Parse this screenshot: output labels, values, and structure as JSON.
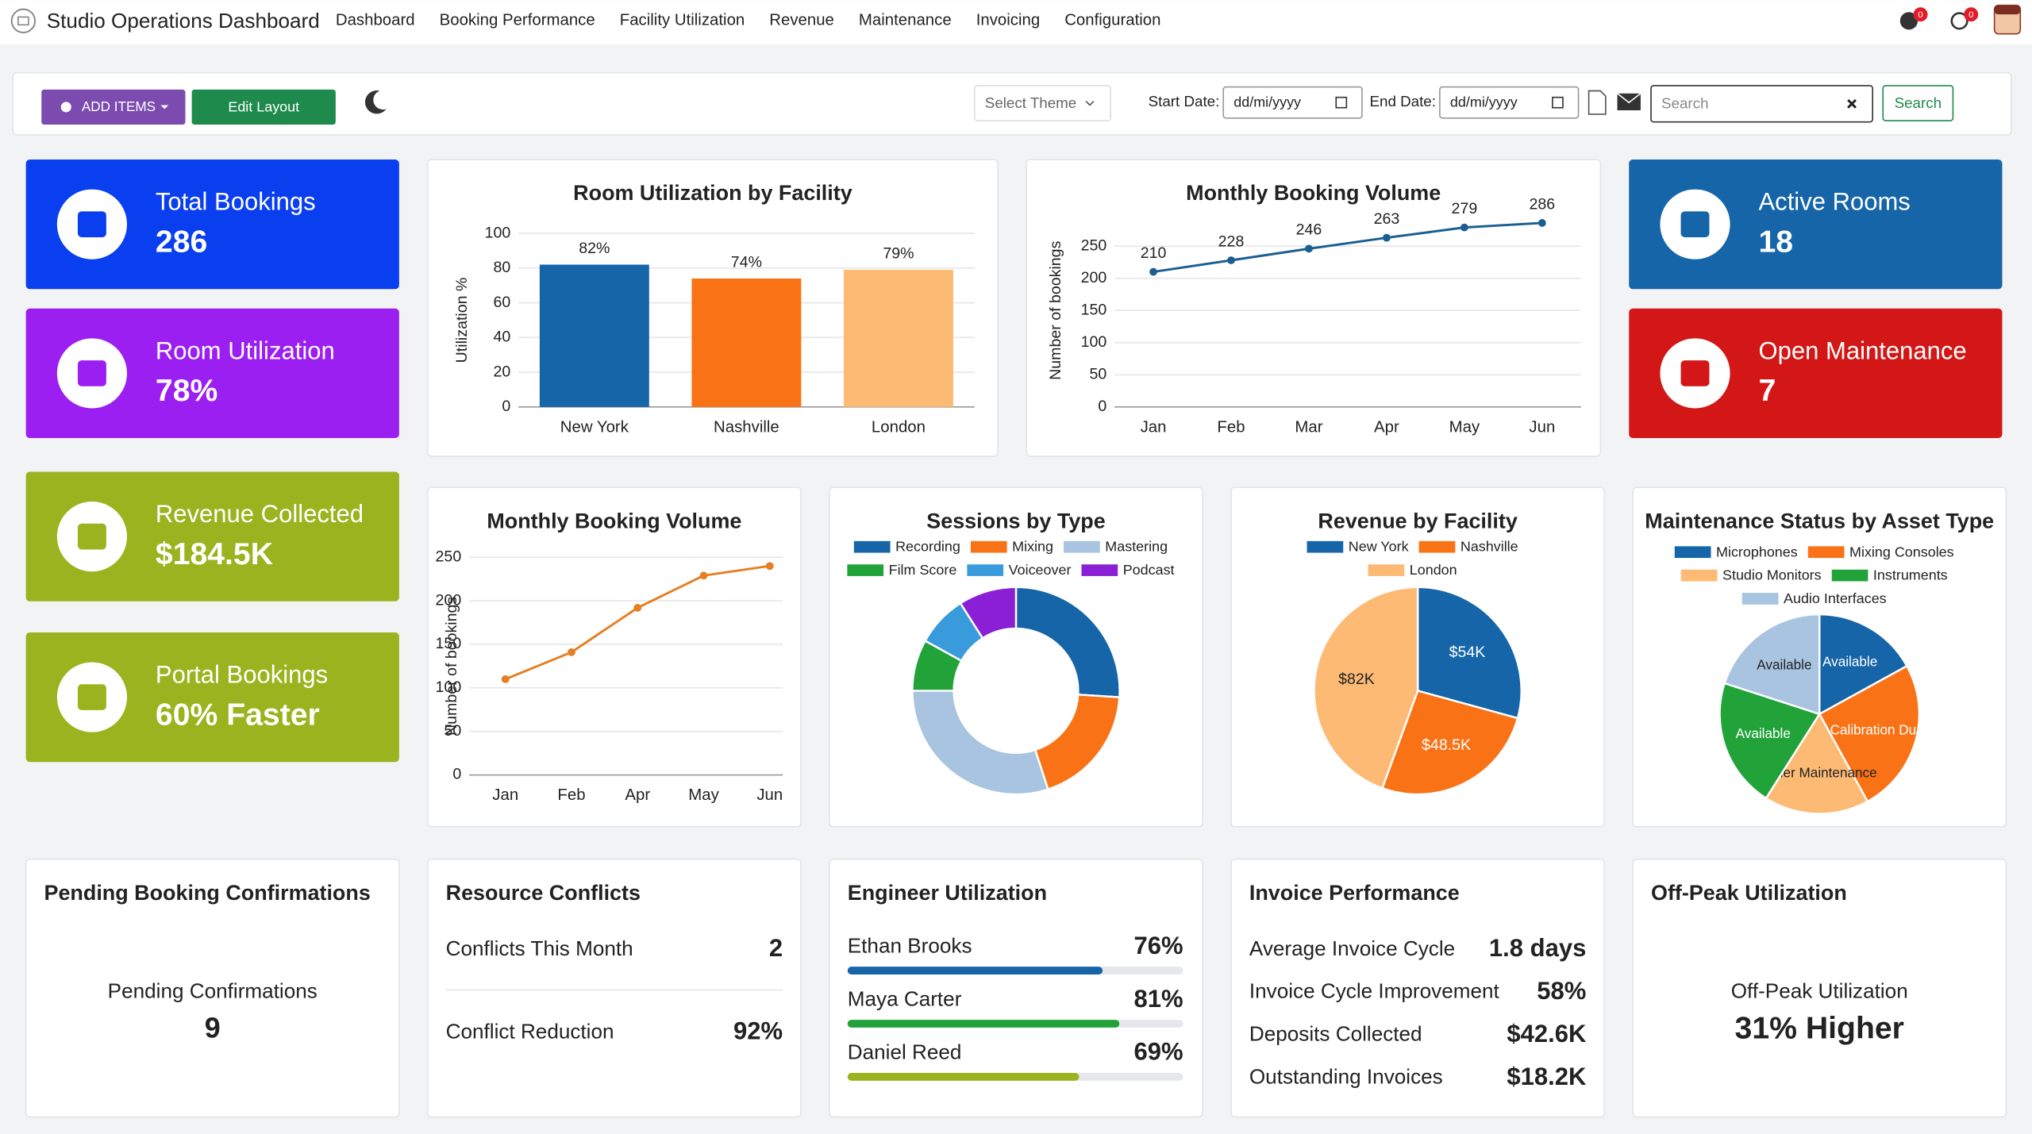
{
  "nav": {
    "title": "Studio Operations Dashboard",
    "items": [
      "Dashboard",
      "Booking Performance",
      "Facility Utilization",
      "Revenue",
      "Maintenance",
      "Invoicing",
      "Configuration"
    ],
    "badges": [
      "0",
      "0"
    ]
  },
  "toolbar": {
    "add_items": "ADD ITEMS",
    "edit_layout": "Edit Layout",
    "theme": "Select Theme",
    "start_label": "Start Date:",
    "end_label": "End Date:",
    "date_placeholder": "dd/mi/yyyy",
    "search_placeholder": "Search",
    "search_button": "Search"
  },
  "kpis": [
    {
      "label": "Total Bookings",
      "value": "286",
      "color": "#0a3ff0"
    },
    {
      "label": "Room Utilization",
      "value": "78%",
      "color": "#9b1ff0"
    },
    {
      "label": "Revenue Collected",
      "value": "$184.5K",
      "color": "#9bb31e"
    },
    {
      "label": "Portal Bookings",
      "value": "60% Faster",
      "color": "#9bb31e"
    },
    {
      "label": "Active Rooms",
      "value": "18",
      "color": "#1565a8"
    },
    {
      "label": "Open Maintenance",
      "value": "7",
      "color": "#d31616"
    }
  ],
  "chart_data": [
    {
      "type": "bar",
      "title": "Room Utilization by Facility",
      "ylabel": "Utilization %",
      "categories": [
        "New York",
        "Nashville",
        "London"
      ],
      "values": [
        82,
        74,
        79
      ],
      "value_labels": [
        "82%",
        "74%",
        "79%"
      ],
      "colors": [
        "#1565a8",
        "#f97316",
        "#fdba74"
      ],
      "ylim": [
        0,
        100
      ],
      "yticks": [
        0,
        20,
        40,
        60,
        80,
        100
      ],
      "grid": true
    },
    {
      "type": "line",
      "title": "Monthly Booking Volume",
      "ylabel": "Number of bookings",
      "categories": [
        "Jan",
        "Feb",
        "Mar",
        "Apr",
        "May",
        "Jun"
      ],
      "values": [
        210,
        228,
        246,
        263,
        279,
        286
      ],
      "color": "#1a5f91",
      "ylim": [
        0,
        300
      ],
      "yticks": [
        0,
        50,
        100,
        150,
        200,
        250
      ],
      "grid": true,
      "data_labels": true
    },
    {
      "type": "line",
      "title": "Monthly Booking Volume",
      "ylabel": "Number of bookings",
      "categories": [
        "Jan",
        "Feb",
        "Apr",
        "May",
        "Jun"
      ],
      "values": [
        110,
        141,
        192,
        229,
        240
      ],
      "color": "#e67e22",
      "ylim": [
        0,
        250
      ],
      "yticks": [
        0,
        50,
        100,
        150,
        200,
        250
      ],
      "grid": true,
      "data_labels": false
    },
    {
      "type": "donut",
      "title": "Sessions by Type",
      "categories": [
        "Recording",
        "Mixing",
        "Mastering",
        "Film Score",
        "Voiceover",
        "Podcast"
      ],
      "values": [
        26,
        19,
        30,
        8,
        8,
        9
      ],
      "colors": [
        "#1565a8",
        "#f97316",
        "#a8c4e0",
        "#22a33a",
        "#3a9bdc",
        "#8b1fd6"
      ]
    },
    {
      "type": "pie",
      "title": "Revenue by Facility",
      "categories": [
        "New York",
        "Nashville",
        "London"
      ],
      "values": [
        54,
        48.5,
        82
      ],
      "value_labels": [
        "$54K",
        "$48.5K",
        "$82K"
      ],
      "colors": [
        "#1565a8",
        "#f97316",
        "#fdba74"
      ]
    },
    {
      "type": "pie",
      "title": "Maintenance Status by Asset Type",
      "categories": [
        "Microphones",
        "Mixing Consoles",
        "Studio Monitors",
        "Instruments",
        "Audio Interfaces"
      ],
      "values": [
        17,
        25,
        17,
        21,
        20
      ],
      "slice_labels": [
        "Available",
        "Calibration Due",
        "Under Maintenance",
        "Available",
        "Available"
      ],
      "colors": [
        "#1565a8",
        "#f97316",
        "#fdba74",
        "#22a33a",
        "#a8c4e0"
      ]
    }
  ],
  "cards": {
    "pending": {
      "title": "Pending Booking Confirmations",
      "label": "Pending Confirmations",
      "value": "9"
    },
    "conflicts": {
      "title": "Resource Conflicts",
      "rows": [
        {
          "label": "Conflicts This Month",
          "value": "2"
        },
        {
          "label": "Conflict Reduction",
          "value": "92%"
        }
      ]
    },
    "engineers": {
      "title": "Engineer Utilization",
      "rows": [
        {
          "name": "Ethan Brooks",
          "value": 76,
          "value_label": "76%",
          "color": "#1565a8"
        },
        {
          "name": "Maya Carter",
          "value": 81,
          "value_label": "81%",
          "color": "#22a33a"
        },
        {
          "name": "Daniel Reed",
          "value": 69,
          "value_label": "69%",
          "color": "#9bb31e"
        }
      ]
    },
    "invoices": {
      "title": "Invoice Performance",
      "rows": [
        {
          "label": "Average Invoice Cycle",
          "value": "1.8 days"
        },
        {
          "label": "Invoice Cycle Improvement",
          "value": "58%"
        },
        {
          "label": "Deposits Collected",
          "value": "$42.6K"
        },
        {
          "label": "Outstanding Invoices",
          "value": "$18.2K"
        }
      ]
    },
    "offpeak": {
      "title": "Off-Peak Utilization",
      "label": "Off-Peak Utilization",
      "value": "31% Higher"
    }
  }
}
